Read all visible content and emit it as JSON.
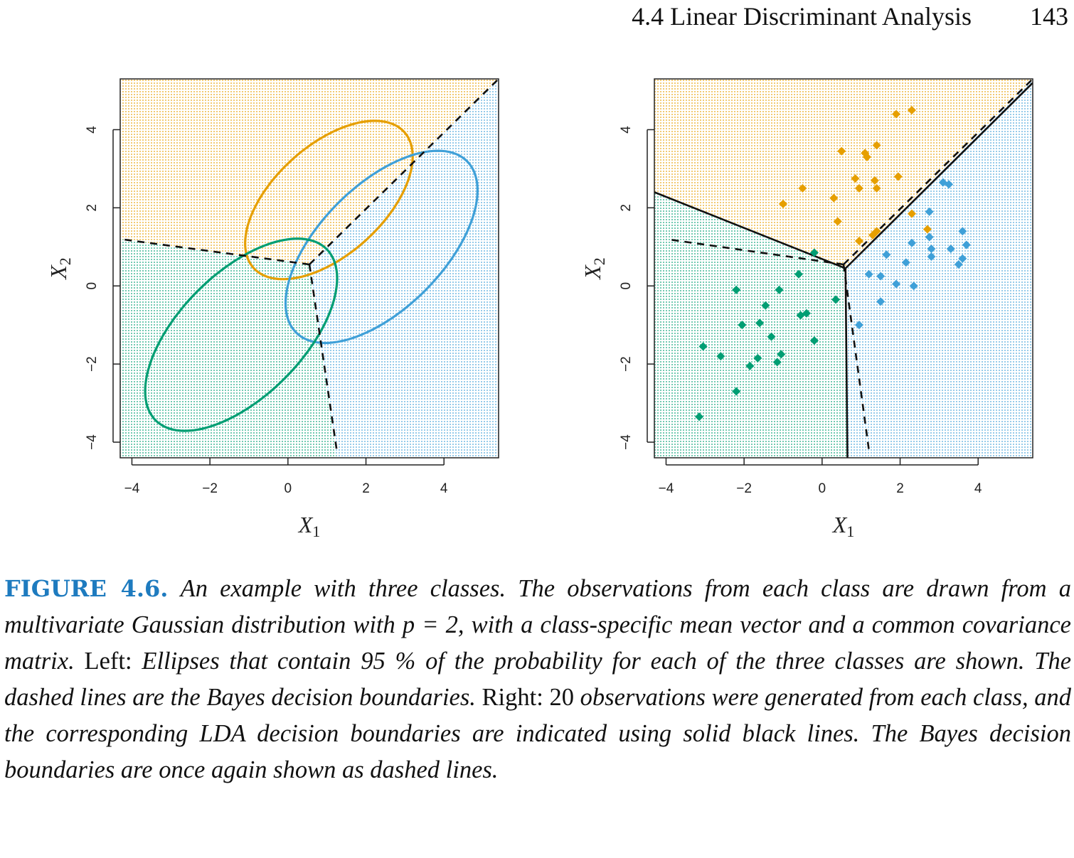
{
  "header": {
    "section": "4.4 Linear Discriminant Analysis",
    "page_number": "143"
  },
  "colors": {
    "orange": "#e69f00",
    "green": "#009e73",
    "blue": "#3fa0d8",
    "line": "#111111"
  },
  "caption": {
    "label": "FIGURE 4.6.",
    "part1": "An example with three classes. The observations from each class are drawn from a multivariate Gaussian distribution with p = 2, with a class-specific mean vector and a common covariance matrix.",
    "left_label": "Left:",
    "part2": "Ellipses that contain 95 % of the probability for each of the three classes are shown. The dashed lines are the Bayes decision boundaries.",
    "right_label": "Right:",
    "count": "20",
    "part3": "observations were generated from each class, and the corresponding LDA decision boundaries are indicated using solid black lines. The Bayes decision boundaries are once again shown as dashed lines."
  },
  "chart_data": [
    {
      "type": "scatter",
      "panel": "left",
      "xlabel": "X1",
      "ylabel": "X2",
      "xlim": [
        -4.3,
        5.4
      ],
      "ylim": [
        -4.4,
        5.3
      ],
      "xticks": [
        "−4",
        "−2",
        "0",
        "2",
        "4"
      ],
      "yticks": [
        "−4",
        "−2",
        "0",
        "2",
        "4"
      ],
      "regions": [
        {
          "class": "orange",
          "polygon": [
            [
              -4.3,
              1.2
            ],
            [
              0.55,
              0.55
            ],
            [
              5.4,
              5.3
            ],
            [
              -4.3,
              5.3
            ]
          ]
        },
        {
          "class": "green",
          "polygon": [
            [
              -4.3,
              -4.4
            ],
            [
              1.25,
              -4.4
            ],
            [
              0.55,
              0.55
            ],
            [
              -4.3,
              1.2
            ]
          ]
        },
        {
          "class": "blue",
          "polygon": [
            [
              1.25,
              -4.4
            ],
            [
              5.4,
              -4.4
            ],
            [
              5.4,
              5.3
            ],
            [
              0.55,
              0.55
            ]
          ]
        }
      ],
      "ellipses": [
        {
          "class": "orange",
          "center": [
            1.05,
            2.2
          ],
          "rx": 2.6,
          "ry": 1.4,
          "angle_deg": 42
        },
        {
          "class": "blue",
          "center": [
            2.4,
            1.0
          ],
          "rx": 3.1,
          "ry": 1.58,
          "angle_deg": 45
        },
        {
          "class": "green",
          "center": [
            -1.2,
            -1.25
          ],
          "rx": 3.1,
          "ry": 1.58,
          "angle_deg": 45
        }
      ],
      "bayes_boundaries": [
        [
          [
            0.55,
            0.55
          ],
          [
            -4.3,
            1.2
          ]
        ],
        [
          [
            0.55,
            0.55
          ],
          [
            5.4,
            5.3
          ]
        ],
        [
          [
            0.55,
            0.55
          ],
          [
            1.25,
            -4.2
          ]
        ]
      ]
    },
    {
      "type": "scatter",
      "panel": "right",
      "xlabel": "X1",
      "ylabel": "X2",
      "xlim": [
        -4.3,
        5.4
      ],
      "ylim": [
        -4.4,
        5.3
      ],
      "xticks": [
        "−4",
        "−2",
        "0",
        "2",
        "4"
      ],
      "yticks": [
        "−4",
        "−2",
        "0",
        "2",
        "4"
      ],
      "regions": [
        {
          "class": "orange",
          "polygon": [
            [
              -4.3,
              2.4
            ],
            [
              0.6,
              0.45
            ],
            [
              5.4,
              5.3
            ],
            [
              -4.3,
              5.3
            ]
          ]
        },
        {
          "class": "green",
          "polygon": [
            [
              -4.3,
              -4.4
            ],
            [
              0.65,
              -4.4
            ],
            [
              0.6,
              0.45
            ],
            [
              -4.3,
              2.4
            ]
          ]
        },
        {
          "class": "blue",
          "polygon": [
            [
              0.65,
              -4.4
            ],
            [
              5.4,
              -4.4
            ],
            [
              5.4,
              5.3
            ],
            [
              0.6,
              0.45
            ]
          ]
        }
      ],
      "bayes_boundaries": [
        [
          [
            0.55,
            0.55
          ],
          [
            -4.0,
            1.2
          ]
        ],
        [
          [
            0.55,
            0.55
          ],
          [
            5.4,
            5.3
          ]
        ],
        [
          [
            0.55,
            0.55
          ],
          [
            1.2,
            -4.2
          ]
        ]
      ],
      "lda_boundaries": [
        [
          [
            0.6,
            0.45
          ],
          [
            -4.3,
            2.4
          ]
        ],
        [
          [
            0.6,
            0.45
          ],
          [
            5.4,
            5.2
          ]
        ],
        [
          [
            0.6,
            0.45
          ],
          [
            0.65,
            -4.4
          ]
        ]
      ],
      "series": [
        {
          "class": "orange",
          "points": [
            [
              1.9,
              4.4
            ],
            [
              2.3,
              4.5
            ],
            [
              0.5,
              3.45
            ],
            [
              1.1,
              3.4
            ],
            [
              1.15,
              3.3
            ],
            [
              1.4,
              3.6
            ],
            [
              -0.5,
              2.5
            ],
            [
              0.85,
              2.75
            ],
            [
              0.95,
              2.5
            ],
            [
              1.35,
              2.7
            ],
            [
              1.4,
              2.5
            ],
            [
              1.95,
              2.8
            ],
            [
              -1.0,
              2.1
            ],
            [
              0.3,
              2.25
            ],
            [
              0.4,
              1.65
            ],
            [
              2.3,
              1.85
            ],
            [
              1.4,
              1.4
            ],
            [
              0.95,
              1.15
            ],
            [
              2.7,
              1.45
            ],
            [
              1.3,
              1.3
            ]
          ]
        },
        {
          "class": "blue",
          "points": [
            [
              3.1,
              2.65
            ],
            [
              3.25,
              2.6
            ],
            [
              2.75,
              1.9
            ],
            [
              2.75,
              1.25
            ],
            [
              3.6,
              1.4
            ],
            [
              3.7,
              1.05
            ],
            [
              2.3,
              1.1
            ],
            [
              2.8,
              0.95
            ],
            [
              3.3,
              0.95
            ],
            [
              1.65,
              0.8
            ],
            [
              2.8,
              0.75
            ],
            [
              3.6,
              0.7
            ],
            [
              3.5,
              0.55
            ],
            [
              2.15,
              0.6
            ],
            [
              1.2,
              0.3
            ],
            [
              1.5,
              0.25
            ],
            [
              1.9,
              0.05
            ],
            [
              2.35,
              0.0
            ],
            [
              1.5,
              -0.4
            ],
            [
              0.95,
              -1.0
            ]
          ]
        },
        {
          "class": "green",
          "points": [
            [
              -0.2,
              0.85
            ],
            [
              -0.6,
              0.3
            ],
            [
              -2.2,
              -0.1
            ],
            [
              -1.1,
              -0.1
            ],
            [
              0.35,
              -0.35
            ],
            [
              -1.45,
              -0.5
            ],
            [
              -0.55,
              -0.75
            ],
            [
              -0.4,
              -0.7
            ],
            [
              -2.05,
              -1.0
            ],
            [
              -1.6,
              -0.95
            ],
            [
              -1.3,
              -1.3
            ],
            [
              -0.2,
              -1.4
            ],
            [
              -3.05,
              -1.55
            ],
            [
              -2.6,
              -1.8
            ],
            [
              -1.05,
              -1.75
            ],
            [
              -1.65,
              -1.85
            ],
            [
              -1.85,
              -2.05
            ],
            [
              -1.15,
              -1.95
            ],
            [
              -2.2,
              -2.7
            ],
            [
              -3.15,
              -3.35
            ]
          ]
        }
      ]
    }
  ]
}
